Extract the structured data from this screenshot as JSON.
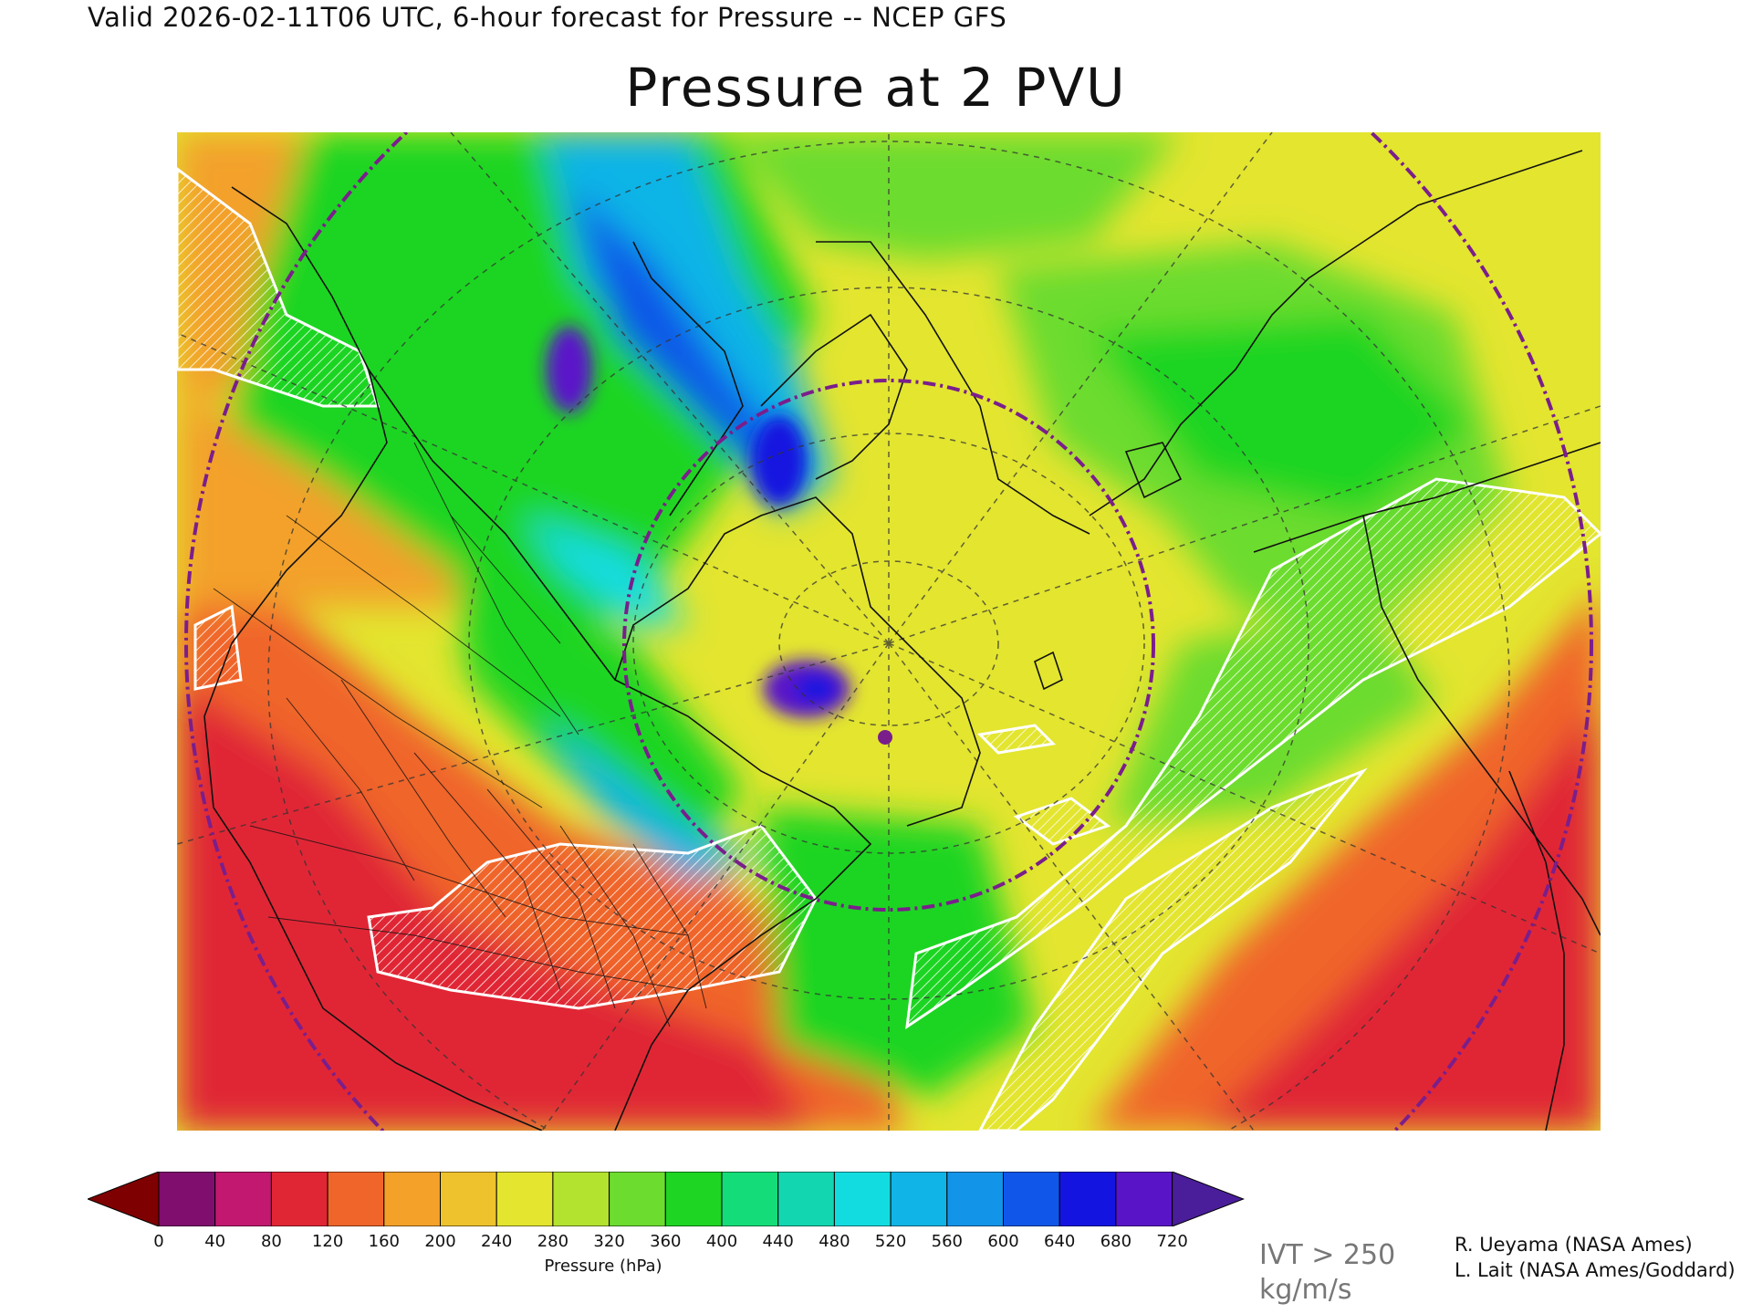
{
  "header": {
    "valid_line": "Valid 2026-02-11T06 UTC, 6-hour forecast for Pressure -- NCEP GFS"
  },
  "map": {
    "title": "Pressure at 2 PVU",
    "overlay_legend": {
      "line1": "IVT > 250",
      "line2": "kg/m/s"
    }
  },
  "colorbar": {
    "label": "Pressure (hPa)",
    "ticks": [
      "0",
      "40",
      "80",
      "120",
      "160",
      "200",
      "240",
      "280",
      "320",
      "360",
      "400",
      "440",
      "480",
      "520",
      "560",
      "600",
      "640",
      "680",
      "720"
    ],
    "under_color": "#7f0000",
    "over_color": "#4a1e9a",
    "colors": [
      "#7f0e6e",
      "#c21870",
      "#e02634",
      "#f0652a",
      "#f3a129",
      "#eec22c",
      "#e3e52f",
      "#b3e22f",
      "#6cdc2e",
      "#1ed524",
      "#14dc78",
      "#12d6b0",
      "#13dce0",
      "#10b4e6",
      "#1294e8",
      "#1056e8",
      "#1414e0",
      "#5a14c8"
    ]
  },
  "credits": {
    "line1": "R. Ueyama (NASA Ames)",
    "line2": "L. Lait (NASA Ames/Goddard)"
  },
  "colors": {
    "low_pressure_red": "#e02634",
    "mid_yellow": "#e3e52f",
    "green": "#1ed524",
    "blue": "#1056e8",
    "purple_circle": "#7a1e8c"
  }
}
